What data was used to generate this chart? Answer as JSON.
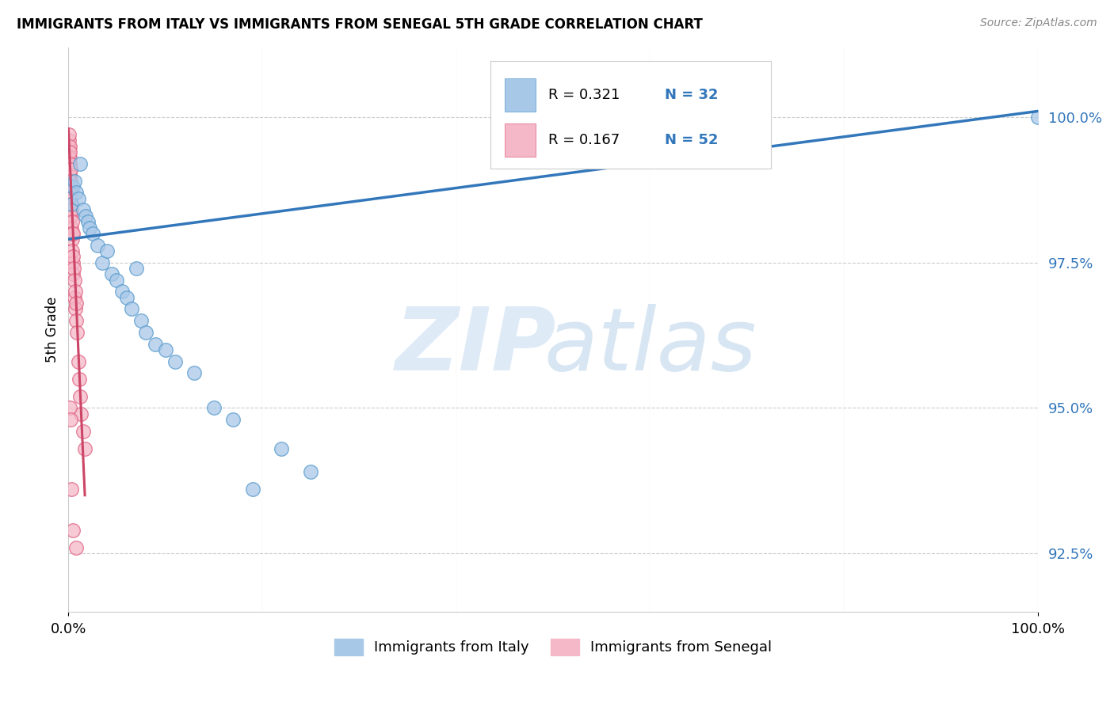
{
  "title": "IMMIGRANTS FROM ITALY VS IMMIGRANTS FROM SENEGAL 5TH GRADE CORRELATION CHART",
  "source": "Source: ZipAtlas.com",
  "ylabel": "5th Grade",
  "xlim": [
    0.0,
    100.0
  ],
  "ylim": [
    91.5,
    101.2
  ],
  "yticks": [
    92.5,
    95.0,
    97.5,
    100.0
  ],
  "italy_color": "#a8c8e8",
  "italy_edge_color": "#5599cc",
  "senegal_color": "#f4b8c8",
  "senegal_edge_color": "#e06080",
  "italy_line_color": "#3377bb",
  "senegal_line_color": "#cc4466",
  "italy_x": [
    0.3,
    0.5,
    0.6,
    0.8,
    1.0,
    1.2,
    1.5,
    1.8,
    2.0,
    2.2,
    2.5,
    3.0,
    3.5,
    4.0,
    4.5,
    5.0,
    5.5,
    6.0,
    6.5,
    7.0,
    7.5,
    8.0,
    9.0,
    10.0,
    11.0,
    13.0,
    15.0,
    17.0,
    19.0,
    22.0,
    25.0,
    100.0
  ],
  "italy_y": [
    98.5,
    98.8,
    98.9,
    98.7,
    98.6,
    99.2,
    98.4,
    98.3,
    98.2,
    98.1,
    98.0,
    97.8,
    97.5,
    97.7,
    97.3,
    97.2,
    97.0,
    96.9,
    96.7,
    97.4,
    96.5,
    96.3,
    96.1,
    96.0,
    95.8,
    95.6,
    95.0,
    94.8,
    93.6,
    94.3,
    93.9,
    100.0
  ],
  "senegal_x": [
    0.05,
    0.05,
    0.07,
    0.08,
    0.08,
    0.1,
    0.1,
    0.12,
    0.12,
    0.13,
    0.15,
    0.15,
    0.15,
    0.18,
    0.18,
    0.2,
    0.2,
    0.2,
    0.22,
    0.25,
    0.25,
    0.25,
    0.28,
    0.3,
    0.3,
    0.35,
    0.35,
    0.4,
    0.4,
    0.45,
    0.5,
    0.5,
    0.5,
    0.55,
    0.6,
    0.6,
    0.7,
    0.7,
    0.8,
    0.8,
    0.9,
    1.0,
    1.1,
    1.2,
    1.3,
    1.5,
    1.7,
    0.15,
    0.2,
    0.3,
    0.5,
    0.8
  ],
  "senegal_y": [
    99.5,
    99.3,
    99.6,
    99.4,
    99.7,
    99.5,
    99.2,
    99.3,
    99.0,
    99.1,
    99.4,
    99.0,
    98.8,
    99.2,
    98.9,
    99.1,
    98.8,
    98.5,
    98.7,
    98.9,
    98.6,
    98.3,
    98.5,
    98.4,
    98.1,
    98.2,
    97.9,
    98.0,
    97.7,
    97.5,
    98.0,
    97.6,
    97.3,
    97.4,
    97.2,
    96.9,
    97.0,
    96.7,
    96.8,
    96.5,
    96.3,
    95.8,
    95.5,
    95.2,
    94.9,
    94.6,
    94.3,
    95.0,
    94.8,
    93.6,
    92.9,
    92.6
  ],
  "italy_trendline_x": [
    0.0,
    100.0
  ],
  "italy_trendline_y": [
    97.9,
    100.1
  ],
  "senegal_trendline_x": [
    0.0,
    1.7
  ],
  "senegal_trendline_y": [
    99.8,
    93.5
  ],
  "legend_r_italy": "R = 0.321",
  "legend_n_italy": "N = 32",
  "legend_r_senegal": "R = 0.167",
  "legend_n_senegal": "N = 52",
  "legend_labels": [
    "Immigrants from Italy",
    "Immigrants from Senegal"
  ]
}
